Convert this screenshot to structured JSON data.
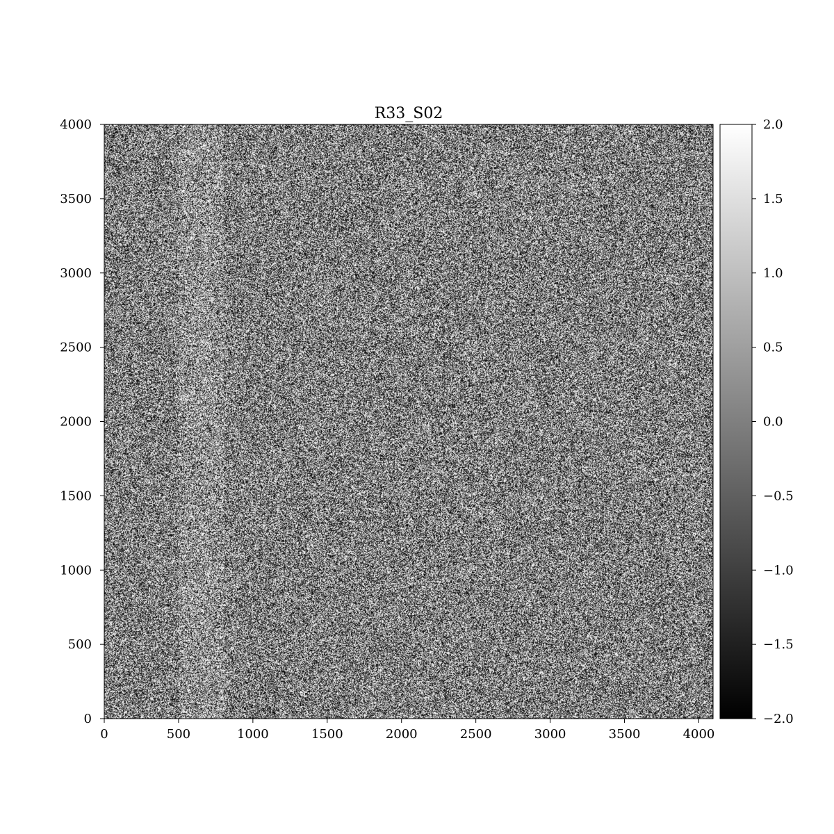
{
  "chart_data": {
    "type": "heatmap",
    "title": "R33_S02",
    "xlabel": "",
    "ylabel": "",
    "xlim": [
      0,
      4096
    ],
    "ylim": [
      0,
      4000
    ],
    "x_ticks": [
      {
        "value": 0,
        "label": "0"
      },
      {
        "value": 500,
        "label": "500"
      },
      {
        "value": 1000,
        "label": "1000"
      },
      {
        "value": 1500,
        "label": "1500"
      },
      {
        "value": 2000,
        "label": "2000"
      },
      {
        "value": 2500,
        "label": "2500"
      },
      {
        "value": 3000,
        "label": "3000"
      },
      {
        "value": 3500,
        "label": "3500"
      },
      {
        "value": 4000,
        "label": "4000"
      }
    ],
    "y_ticks": [
      {
        "value": 0,
        "label": "0"
      },
      {
        "value": 500,
        "label": "500"
      },
      {
        "value": 1000,
        "label": "1000"
      },
      {
        "value": 1500,
        "label": "1500"
      },
      {
        "value": 2000,
        "label": "2000"
      },
      {
        "value": 2500,
        "label": "2500"
      },
      {
        "value": 3000,
        "label": "3000"
      },
      {
        "value": 3500,
        "label": "3500"
      },
      {
        "value": 4000,
        "label": "4000"
      }
    ],
    "colorbar": {
      "colormap": "gray",
      "range": [
        -2.0,
        2.0
      ],
      "ticks": [
        {
          "value": 2.0,
          "label": "2.0"
        },
        {
          "value": 1.5,
          "label": "1.5"
        },
        {
          "value": 1.0,
          "label": "1.0"
        },
        {
          "value": 0.5,
          "label": "0.5"
        },
        {
          "value": 0.0,
          "label": "0.0"
        },
        {
          "value": -0.5,
          "label": "−0.5"
        },
        {
          "value": -1.0,
          "label": "−1.0"
        },
        {
          "value": -1.5,
          "label": "−1.5"
        },
        {
          "value": -2.0,
          "label": "−2.0"
        }
      ]
    },
    "image": {
      "description_kind": "per-pixel noise",
      "mean": 0.0,
      "brighter_column_band": [
        500,
        800
      ]
    },
    "grid": false
  },
  "colors": {
    "background": "#ffffff",
    "axes": "#000000",
    "low": "#000000",
    "high": "#ffffff"
  }
}
